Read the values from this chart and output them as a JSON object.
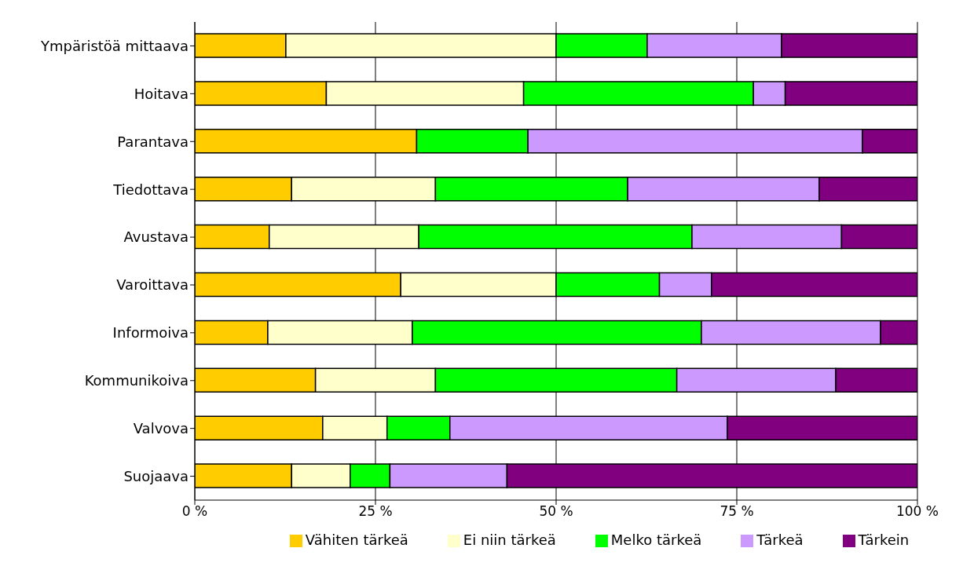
{
  "chart_data": {
    "type": "bar",
    "orientation": "horizontal",
    "stacked": true,
    "categories": [
      "Ympäristöä mittaava",
      "Hoitava",
      "Parantava",
      "Tiedottava",
      "Avustava",
      "Varoittava",
      "Informoiva",
      "Kommunikoiva",
      "Valvova",
      "Suojaava"
    ],
    "series": [
      {
        "name": "Vähiten tärkeä",
        "color": "#ffcc00",
        "values": [
          12.6,
          18.2,
          30.7,
          13.4,
          10.3,
          28.5,
          10.1,
          16.7,
          17.7,
          13.4
        ]
      },
      {
        "name": "Ei niin tärkeä",
        "color": "#ffffcc",
        "values": [
          37.4,
          27.3,
          0,
          19.9,
          20.7,
          21.5,
          20.0,
          16.6,
          8.9,
          8.1
        ]
      },
      {
        "name": "Melko tärkeä",
        "color": "#00ff00",
        "values": [
          12.6,
          31.8,
          15.4,
          26.6,
          37.8,
          14.3,
          40.0,
          33.4,
          8.7,
          5.5
        ]
      },
      {
        "name": "Tärkeä",
        "color": "#cc99ff",
        "values": [
          18.6,
          4.4,
          46.3,
          26.5,
          20.7,
          7.2,
          24.8,
          22.0,
          38.4,
          16.2
        ]
      },
      {
        "name": "Tärkein",
        "color": "#800080",
        "values": [
          18.8,
          18.3,
          7.6,
          13.6,
          10.5,
          28.5,
          5.1,
          11.3,
          26.3,
          56.8
        ]
      }
    ],
    "xlim": [
      0,
      100
    ],
    "xticks": [
      {
        "value": 0,
        "label": "0 %"
      },
      {
        "value": 25,
        "label": "25 %"
      },
      {
        "value": 50,
        "label": "50 %"
      },
      {
        "value": 75,
        "label": "75 %"
      },
      {
        "value": 100,
        "label": "100 %"
      }
    ],
    "grid": "x",
    "legend": "bottom"
  }
}
